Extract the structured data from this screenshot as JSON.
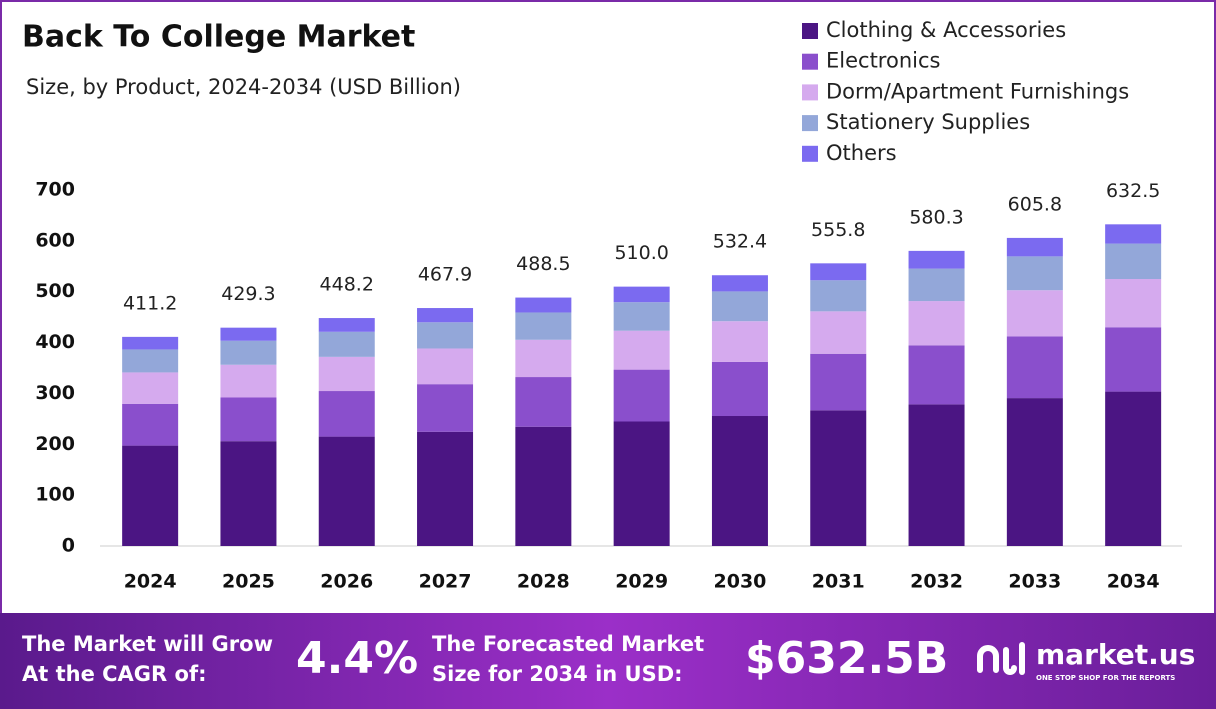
{
  "chart_data": {
    "type": "stacked-bar",
    "title": "Back To College Market",
    "subtitle": "Size, by Product, 2024-2034 (USD Billion)",
    "categories": [
      "2024",
      "2025",
      "2026",
      "2027",
      "2028",
      "2029",
      "2030",
      "2031",
      "2032",
      "2033",
      "2034"
    ],
    "series": [
      {
        "name": "Clothing & Accessories",
        "color": "#4b1583",
        "values": [
          197.4,
          206.1,
          215.1,
          224.6,
          234.5,
          244.8,
          255.6,
          266.8,
          278.5,
          290.8,
          303.6
        ]
      },
      {
        "name": "Electronics",
        "color": "#8a4fcc",
        "values": [
          82.2,
          85.9,
          89.6,
          93.6,
          97.7,
          102.0,
          106.5,
          111.2,
          116.1,
          121.2,
          126.5
        ]
      },
      {
        "name": "Dorm/Apartment Furnishings",
        "color": "#d5aaee",
        "values": [
          61.7,
          64.4,
          67.2,
          70.2,
          73.3,
          76.5,
          79.9,
          83.4,
          87.0,
          90.9,
          94.9
        ]
      },
      {
        "name": "Stationery Supplies",
        "color": "#93a7d9",
        "values": [
          45.2,
          47.2,
          49.3,
          51.5,
          53.7,
          56.1,
          58.6,
          61.1,
          63.8,
          66.6,
          69.6
        ]
      },
      {
        "name": "Others",
        "color": "#7b6af0",
        "values": [
          24.7,
          25.7,
          27.0,
          28.0,
          29.3,
          30.6,
          31.8,
          33.3,
          34.9,
          36.3,
          37.9
        ]
      }
    ],
    "totals": {
      "values": [
        411.2,
        429.3,
        448.2,
        467.9,
        488.5,
        510.0,
        532.4,
        555.8,
        580.3,
        605.8,
        632.5
      ],
      "value_labels": [
        "411.2",
        "429.3",
        "448.2",
        "467.9",
        "488.5",
        "510.0",
        "532.4",
        "555.8",
        "580.3",
        "605.8",
        "632.5"
      ]
    },
    "ylim": [
      0,
      700
    ],
    "yticks": [
      0,
      100,
      200,
      300,
      400,
      500,
      600,
      700
    ],
    "grid": false,
    "legend": "top-right"
  },
  "footer": {
    "cagr_text": [
      "The Market will Grow",
      "At the CAGR of:"
    ],
    "cagr": "4.4%",
    "forecast_text": [
      "The Forecasted Market",
      "Size for 2034 in USD:"
    ],
    "forecast": "$632.5B",
    "brand": "market.us",
    "tagline": "ONE STOP SHOP FOR THE REPORTS"
  }
}
